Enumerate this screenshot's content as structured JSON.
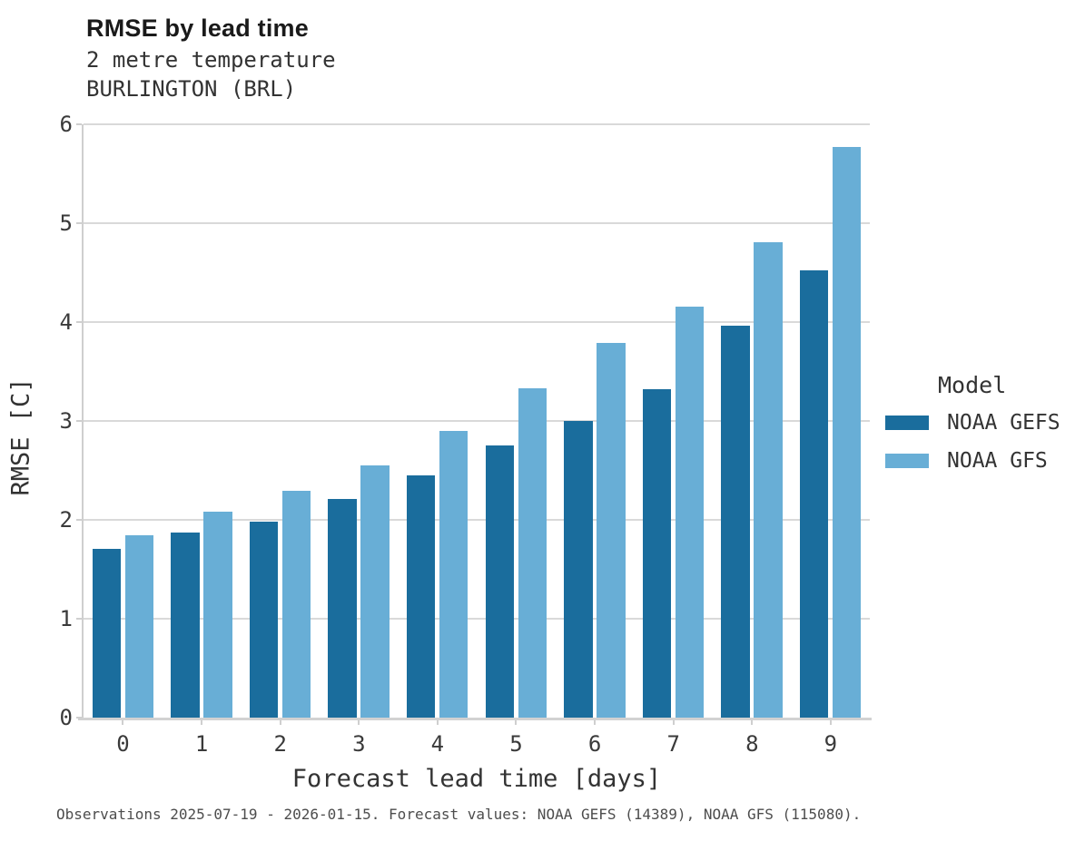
{
  "header": {
    "title": "RMSE by lead time",
    "subtitle_line1": "2 metre temperature",
    "subtitle_line2": "BURLINGTON (BRL)"
  },
  "caption": "Observations 2025-07-19 - 2026-01-15. Forecast values: NOAA GEFS (14389), NOAA GFS (115080).",
  "legend": {
    "title": "Model"
  },
  "colors": {
    "gefs_dark_blue": "#1A6D9D",
    "gfs_light_blue": "#68AED6",
    "gridline": "#D9D9D9",
    "axis": "#CFCFCF"
  },
  "chart_data": {
    "type": "bar",
    "title": "RMSE by lead time",
    "subtitle": "2 metre temperature BURLINGTON (BRL)",
    "xlabel": "Forecast lead time [days]",
    "ylabel": "RMSE [C]",
    "categories": [
      "0",
      "1",
      "2",
      "3",
      "4",
      "5",
      "6",
      "7",
      "8",
      "9"
    ],
    "series": [
      {
        "name": "NOAA GEFS",
        "color": "#1A6D9D",
        "values": [
          1.71,
          1.87,
          1.98,
          2.21,
          2.45,
          2.75,
          3.0,
          3.32,
          3.96,
          4.52
        ]
      },
      {
        "name": "NOAA GFS",
        "color": "#68AED6",
        "values": [
          1.84,
          2.08,
          2.29,
          2.55,
          2.9,
          3.33,
          3.79,
          4.16,
          4.81,
          5.77
        ]
      }
    ],
    "ylim": [
      0,
      6
    ],
    "ytick_step": 1,
    "yticks": [
      0,
      1,
      2,
      3,
      4,
      5,
      6
    ],
    "grid": true,
    "legend_position": "right"
  }
}
